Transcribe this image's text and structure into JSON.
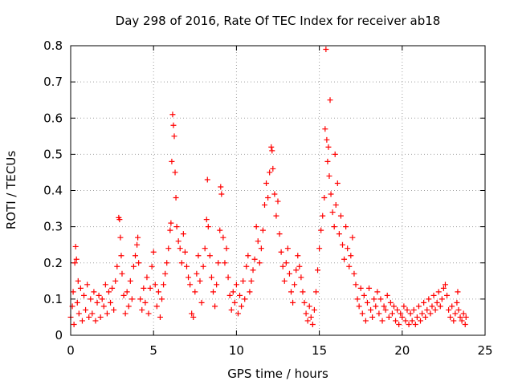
{
  "chart_data": {
    "type": "scatter",
    "title": "Day 298 of 2016, Rate Of TEC Index for receiver ab18",
    "xlabel": "GPS time / hours",
    "ylabel": "ROTI / TECUs",
    "xlim": [
      0,
      25
    ],
    "ylim": [
      0,
      0.8
    ],
    "xticks": [
      0,
      5,
      10,
      15,
      20,
      25
    ],
    "yticks": [
      0,
      0.1,
      0.2,
      0.3,
      0.4,
      0.5,
      0.6,
      0.7,
      0.8
    ],
    "grid": true,
    "marker": "+",
    "color": "#ff0000",
    "series": [
      {
        "points": [
          [
            0.0,
            0.05
          ],
          [
            0.1,
            0.08
          ],
          [
            0.15,
            0.12
          ],
          [
            0.2,
            0.03
          ],
          [
            0.25,
            0.2
          ],
          [
            0.3,
            0.245
          ],
          [
            0.35,
            0.21
          ],
          [
            0.4,
            0.09
          ],
          [
            0.45,
            0.15
          ],
          [
            0.5,
            0.06
          ],
          [
            0.6,
            0.13
          ],
          [
            0.7,
            0.04
          ],
          [
            0.8,
            0.11
          ],
          [
            0.9,
            0.07
          ],
          [
            1.0,
            0.14
          ],
          [
            1.1,
            0.05
          ],
          [
            1.2,
            0.1
          ],
          [
            1.3,
            0.06
          ],
          [
            1.4,
            0.12
          ],
          [
            1.5,
            0.04
          ],
          [
            1.6,
            0.09
          ],
          [
            1.7,
            0.11
          ],
          [
            1.8,
            0.05
          ],
          [
            1.9,
            0.1
          ],
          [
            2.0,
            0.08
          ],
          [
            2.1,
            0.14
          ],
          [
            2.2,
            0.06
          ],
          [
            2.3,
            0.12
          ],
          [
            2.4,
            0.09
          ],
          [
            2.5,
            0.13
          ],
          [
            2.6,
            0.07
          ],
          [
            2.7,
            0.15
          ],
          [
            2.8,
            0.19
          ],
          [
            2.9,
            0.325
          ],
          [
            2.95,
            0.32
          ],
          [
            3.0,
            0.27
          ],
          [
            3.05,
            0.22
          ],
          [
            3.1,
            0.17
          ],
          [
            3.2,
            0.11
          ],
          [
            3.3,
            0.06
          ],
          [
            3.4,
            0.12
          ],
          [
            3.5,
            0.08
          ],
          [
            3.6,
            0.15
          ],
          [
            3.7,
            0.1
          ],
          [
            3.8,
            0.19
          ],
          [
            3.9,
            0.22
          ],
          [
            4.0,
            0.25
          ],
          [
            4.05,
            0.27
          ],
          [
            4.1,
            0.2
          ],
          [
            4.2,
            0.1
          ],
          [
            4.3,
            0.07
          ],
          [
            4.4,
            0.13
          ],
          [
            4.5,
            0.09
          ],
          [
            4.6,
            0.16
          ],
          [
            4.7,
            0.06
          ],
          [
            4.8,
            0.13
          ],
          [
            4.9,
            0.19
          ],
          [
            5.0,
            0.23
          ],
          [
            5.1,
            0.14
          ],
          [
            5.2,
            0.08
          ],
          [
            5.3,
            0.12
          ],
          [
            5.4,
            0.05
          ],
          [
            5.5,
            0.1
          ],
          [
            5.6,
            0.14
          ],
          [
            5.7,
            0.17
          ],
          [
            5.8,
            0.2
          ],
          [
            5.9,
            0.24
          ],
          [
            6.0,
            0.29
          ],
          [
            6.05,
            0.31
          ],
          [
            6.1,
            0.48
          ],
          [
            6.15,
            0.61
          ],
          [
            6.2,
            0.58
          ],
          [
            6.25,
            0.55
          ],
          [
            6.3,
            0.45
          ],
          [
            6.35,
            0.38
          ],
          [
            6.4,
            0.3
          ],
          [
            6.5,
            0.26
          ],
          [
            6.6,
            0.24
          ],
          [
            6.7,
            0.2
          ],
          [
            6.8,
            0.28
          ],
          [
            6.9,
            0.23
          ],
          [
            7.0,
            0.19
          ],
          [
            7.1,
            0.16
          ],
          [
            7.2,
            0.14
          ],
          [
            7.3,
            0.06
          ],
          [
            7.4,
            0.05
          ],
          [
            7.5,
            0.12
          ],
          [
            7.6,
            0.17
          ],
          [
            7.7,
            0.22
          ],
          [
            7.8,
            0.15
          ],
          [
            7.9,
            0.09
          ],
          [
            8.0,
            0.19
          ],
          [
            8.1,
            0.24
          ],
          [
            8.2,
            0.32
          ],
          [
            8.25,
            0.43
          ],
          [
            8.3,
            0.3
          ],
          [
            8.4,
            0.22
          ],
          [
            8.5,
            0.16
          ],
          [
            8.6,
            0.12
          ],
          [
            8.7,
            0.08
          ],
          [
            8.8,
            0.14
          ],
          [
            8.9,
            0.2
          ],
          [
            9.0,
            0.29
          ],
          [
            9.05,
            0.41
          ],
          [
            9.1,
            0.39
          ],
          [
            9.2,
            0.27
          ],
          [
            9.3,
            0.2
          ],
          [
            9.4,
            0.24
          ],
          [
            9.5,
            0.16
          ],
          [
            9.6,
            0.11
          ],
          [
            9.7,
            0.07
          ],
          [
            9.8,
            0.12
          ],
          [
            9.9,
            0.09
          ],
          [
            10.0,
            0.14
          ],
          [
            10.1,
            0.06
          ],
          [
            10.2,
            0.11
          ],
          [
            10.3,
            0.08
          ],
          [
            10.4,
            0.15
          ],
          [
            10.5,
            0.1
          ],
          [
            10.6,
            0.19
          ],
          [
            10.7,
            0.22
          ],
          [
            10.8,
            0.12
          ],
          [
            10.9,
            0.15
          ],
          [
            11.0,
            0.18
          ],
          [
            11.1,
            0.21
          ],
          [
            11.2,
            0.3
          ],
          [
            11.3,
            0.26
          ],
          [
            11.4,
            0.2
          ],
          [
            11.5,
            0.24
          ],
          [
            11.6,
            0.29
          ],
          [
            11.7,
            0.36
          ],
          [
            11.8,
            0.42
          ],
          [
            11.9,
            0.38
          ],
          [
            12.0,
            0.45
          ],
          [
            12.1,
            0.52
          ],
          [
            12.15,
            0.51
          ],
          [
            12.2,
            0.46
          ],
          [
            12.3,
            0.39
          ],
          [
            12.4,
            0.33
          ],
          [
            12.5,
            0.37
          ],
          [
            12.6,
            0.28
          ],
          [
            12.7,
            0.23
          ],
          [
            12.8,
            0.19
          ],
          [
            12.9,
            0.15
          ],
          [
            13.0,
            0.2
          ],
          [
            13.1,
            0.24
          ],
          [
            13.2,
            0.17
          ],
          [
            13.3,
            0.12
          ],
          [
            13.4,
            0.09
          ],
          [
            13.5,
            0.14
          ],
          [
            13.6,
            0.18
          ],
          [
            13.7,
            0.22
          ],
          [
            13.8,
            0.19
          ],
          [
            13.9,
            0.16
          ],
          [
            14.0,
            0.12
          ],
          [
            14.1,
            0.09
          ],
          [
            14.2,
            0.06
          ],
          [
            14.3,
            0.04
          ],
          [
            14.4,
            0.08
          ],
          [
            14.5,
            0.05
          ],
          [
            14.6,
            0.03
          ],
          [
            14.7,
            0.07
          ],
          [
            14.8,
            0.12
          ],
          [
            14.9,
            0.18
          ],
          [
            15.0,
            0.24
          ],
          [
            15.1,
            0.29
          ],
          [
            15.2,
            0.33
          ],
          [
            15.3,
            0.38
          ],
          [
            15.35,
            0.57
          ],
          [
            15.4,
            0.79
          ],
          [
            15.45,
            0.54
          ],
          [
            15.5,
            0.48
          ],
          [
            15.55,
            0.52
          ],
          [
            15.6,
            0.44
          ],
          [
            15.65,
            0.65
          ],
          [
            15.7,
            0.39
          ],
          [
            15.8,
            0.34
          ],
          [
            15.9,
            0.3
          ],
          [
            15.95,
            0.5
          ],
          [
            16.0,
            0.36
          ],
          [
            16.1,
            0.42
          ],
          [
            16.2,
            0.28
          ],
          [
            16.3,
            0.33
          ],
          [
            16.4,
            0.25
          ],
          [
            16.5,
            0.21
          ],
          [
            16.6,
            0.3
          ],
          [
            16.7,
            0.24
          ],
          [
            16.8,
            0.19
          ],
          [
            16.9,
            0.22
          ],
          [
            17.0,
            0.27
          ],
          [
            17.1,
            0.17
          ],
          [
            17.2,
            0.14
          ],
          [
            17.3,
            0.1
          ],
          [
            17.4,
            0.08
          ],
          [
            17.5,
            0.13
          ],
          [
            17.6,
            0.06
          ],
          [
            17.7,
            0.11
          ],
          [
            17.8,
            0.04
          ],
          [
            17.9,
            0.09
          ],
          [
            18.0,
            0.13
          ],
          [
            18.1,
            0.07
          ],
          [
            18.2,
            0.05
          ],
          [
            18.3,
            0.1
          ],
          [
            18.4,
            0.08
          ],
          [
            18.5,
            0.12
          ],
          [
            18.6,
            0.06
          ],
          [
            18.7,
            0.1
          ],
          [
            18.8,
            0.04
          ],
          [
            18.9,
            0.08
          ],
          [
            19.0,
            0.07
          ],
          [
            19.1,
            0.11
          ],
          [
            19.2,
            0.05
          ],
          [
            19.3,
            0.09
          ],
          [
            19.4,
            0.06
          ],
          [
            19.5,
            0.08
          ],
          [
            19.6,
            0.04
          ],
          [
            19.7,
            0.07
          ],
          [
            19.8,
            0.03
          ],
          [
            19.9,
            0.06
          ],
          [
            20.0,
            0.05
          ],
          [
            20.1,
            0.08
          ],
          [
            20.2,
            0.04
          ],
          [
            20.3,
            0.07
          ],
          [
            20.4,
            0.03
          ],
          [
            20.5,
            0.06
          ],
          [
            20.6,
            0.04
          ],
          [
            20.7,
            0.07
          ],
          [
            20.8,
            0.03
          ],
          [
            20.9,
            0.05
          ],
          [
            21.0,
            0.08
          ],
          [
            21.1,
            0.04
          ],
          [
            21.2,
            0.06
          ],
          [
            21.3,
            0.09
          ],
          [
            21.4,
            0.05
          ],
          [
            21.5,
            0.07
          ],
          [
            21.6,
            0.1
          ],
          [
            21.7,
            0.06
          ],
          [
            21.8,
            0.08
          ],
          [
            21.9,
            0.11
          ],
          [
            22.0,
            0.07
          ],
          [
            22.1,
            0.09
          ],
          [
            22.2,
            0.12
          ],
          [
            22.3,
            0.08
          ],
          [
            22.4,
            0.1
          ],
          [
            22.5,
            0.13
          ],
          [
            22.6,
            0.14
          ],
          [
            22.7,
            0.11
          ],
          [
            22.8,
            0.07
          ],
          [
            22.9,
            0.05
          ],
          [
            23.0,
            0.08
          ],
          [
            23.1,
            0.04
          ],
          [
            23.2,
            0.06
          ],
          [
            23.3,
            0.09
          ],
          [
            23.35,
            0.12
          ],
          [
            23.4,
            0.07
          ],
          [
            23.5,
            0.05
          ],
          [
            23.6,
            0.04
          ],
          [
            23.7,
            0.06
          ],
          [
            23.8,
            0.03
          ],
          [
            23.85,
            0.05
          ]
        ]
      }
    ]
  }
}
